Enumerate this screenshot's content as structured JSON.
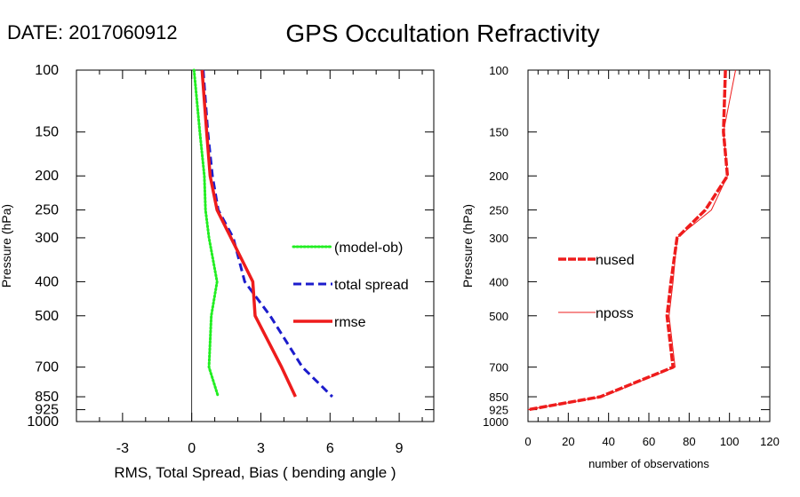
{
  "header": {
    "date_label": "DATE: 2017060912",
    "title": "GPS Occultation Refractivity"
  },
  "chart_data": [
    {
      "type": "line",
      "xlabel": "RMS, Total Spread, Bias ( bending angle )",
      "ylabel": "Pressure (hPa)",
      "xlim": [
        -5,
        10.5
      ],
      "ylim": [
        1000,
        100
      ],
      "y_scale": "log",
      "x_ticks": [
        "-3",
        "0",
        "3",
        "6",
        "9"
      ],
      "y_ticks": [
        "100",
        "150",
        "200",
        "250",
        "300",
        "400",
        "500",
        "700",
        "850",
        "925",
        "1000"
      ],
      "zero_line": 0,
      "legend_position": "right-middle",
      "series": [
        {
          "name": "(model-ob)",
          "color": "#22ee22",
          "style": "dotted",
          "points": [
            [
              0.1,
              100
            ],
            [
              0.35,
              150
            ],
            [
              0.55,
              200
            ],
            [
              0.6,
              250
            ],
            [
              0.75,
              300
            ],
            [
              1.1,
              400
            ],
            [
              0.85,
              500
            ],
            [
              0.75,
              700
            ],
            [
              1.15,
              850
            ]
          ]
        },
        {
          "name": "total spread",
          "color": "#1c1ccc",
          "style": "dashed",
          "points": [
            [
              0.5,
              100
            ],
            [
              0.7,
              150
            ],
            [
              0.9,
              200
            ],
            [
              1.15,
              250
            ],
            [
              1.8,
              300
            ],
            [
              2.3,
              400
            ],
            [
              3.4,
              500
            ],
            [
              4.8,
              700
            ],
            [
              6.1,
              850
            ]
          ]
        },
        {
          "name": "rmse",
          "color": "#ee1c1c",
          "style": "solid",
          "points": [
            [
              0.45,
              100
            ],
            [
              0.65,
              150
            ],
            [
              0.8,
              200
            ],
            [
              1.1,
              250
            ],
            [
              1.7,
              300
            ],
            [
              2.65,
              400
            ],
            [
              2.75,
              500
            ],
            [
              3.9,
              700
            ],
            [
              4.5,
              850
            ]
          ]
        }
      ]
    },
    {
      "type": "line",
      "xlabel": "number of observations",
      "ylabel": "Pressure (hPa)",
      "xlim": [
        0,
        120
      ],
      "ylim": [
        1000,
        100
      ],
      "y_scale": "log",
      "x_ticks": [
        "0",
        "20",
        "40",
        "60",
        "80",
        "100",
        "120"
      ],
      "y_ticks": [
        "100",
        "150",
        "200",
        "250",
        "300",
        "400",
        "500",
        "700",
        "850",
        "925",
        "1000"
      ],
      "legend_position": "left-middle",
      "series": [
        {
          "name": "nused",
          "color": "#ee1c1c",
          "style": "dashed-thick",
          "points": [
            [
              98,
              100
            ],
            [
              97,
              150
            ],
            [
              99,
              200
            ],
            [
              88,
              250
            ],
            [
              74,
              300
            ],
            [
              71,
              400
            ],
            [
              69,
              500
            ],
            [
              72,
              700
            ],
            [
              36,
              850
            ],
            [
              0,
              925
            ]
          ]
        },
        {
          "name": "nposs",
          "color": "#ee1c1c",
          "style": "thin",
          "points": [
            [
              103,
              100
            ],
            [
              97,
              150
            ],
            [
              99,
              200
            ],
            [
              91,
              250
            ],
            [
              74,
              300
            ],
            [
              72,
              400
            ],
            [
              70,
              500
            ],
            [
              73,
              700
            ],
            [
              37,
              850
            ],
            [
              0,
              925
            ]
          ]
        }
      ]
    }
  ]
}
